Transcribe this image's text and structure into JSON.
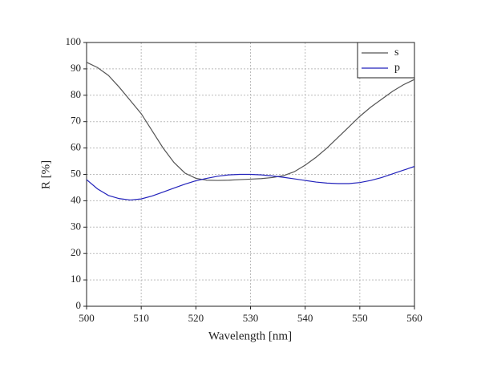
{
  "chart_data": {
    "type": "line",
    "x_label": "Wavelength [nm]",
    "y_label": "R [%]",
    "x": [
      500,
      502,
      504,
      506,
      508,
      510,
      512,
      514,
      516,
      518,
      520,
      522,
      524,
      526,
      528,
      530,
      532,
      534,
      536,
      538,
      540,
      542,
      544,
      546,
      548,
      550,
      552,
      554,
      556,
      558,
      560
    ],
    "series": [
      {
        "name": "s",
        "color": "#555555",
        "values": [
          92.5,
          90.5,
          87.5,
          83,
          78,
          73,
          66.5,
          60,
          54.5,
          50.5,
          48.5,
          47.8,
          47.7,
          47.8,
          48,
          48.2,
          48.4,
          48.8,
          49.5,
          51,
          53.5,
          56.5,
          60,
          64,
          68,
          72,
          75.5,
          78.5,
          81.5,
          84,
          86
        ]
      },
      {
        "name": "p",
        "color": "#2222bb",
        "values": [
          48,
          44.5,
          42,
          40.8,
          40.3,
          40.7,
          41.8,
          43.3,
          44.8,
          46.3,
          47.6,
          48.5,
          49.3,
          49.8,
          50,
          50,
          49.8,
          49.4,
          48.9,
          48.3,
          47.7,
          47.1,
          46.7,
          46.5,
          46.5,
          46.9,
          47.7,
          48.8,
          50.2,
          51.6,
          53
        ]
      }
    ],
    "xlim": [
      500,
      560
    ],
    "xticks": [
      500,
      510,
      520,
      530,
      540,
      550,
      560
    ],
    "ylim": [
      0,
      100
    ],
    "yticks": [
      0,
      10,
      20,
      30,
      40,
      50,
      60,
      70,
      80,
      90,
      100
    ],
    "grid": true,
    "legend": "top-right"
  }
}
